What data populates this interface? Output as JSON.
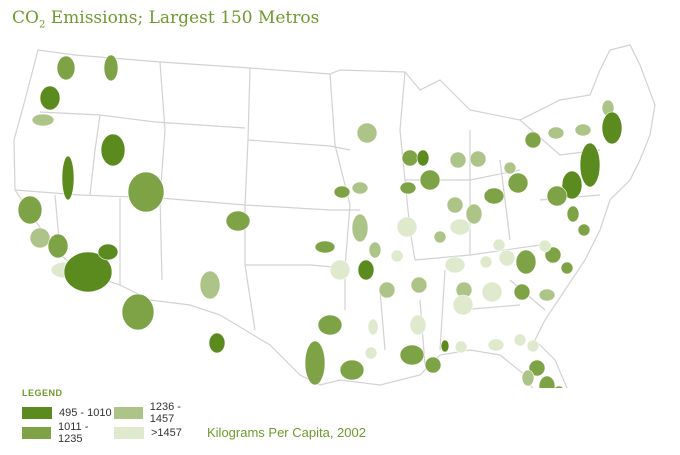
{
  "title": {
    "main": "CO",
    "sub": "2",
    "rest": " Emissions; Largest 150 Metros"
  },
  "legend": {
    "title": "LEGEND",
    "items": [
      {
        "label": "495 - 1010",
        "color": "#5b8a1f"
      },
      {
        "label": "1236 - 1457",
        "color": "#adc489"
      },
      {
        "label": "1011 - 1235",
        "color": "#7ea346"
      },
      {
        "label": ">1457",
        "color": "#dfe9cd"
      }
    ]
  },
  "unit_label": "Kilograms Per Capita, 2002",
  "colors": {
    "border": "#d2d2d2",
    "land": "#ffffff"
  }
}
